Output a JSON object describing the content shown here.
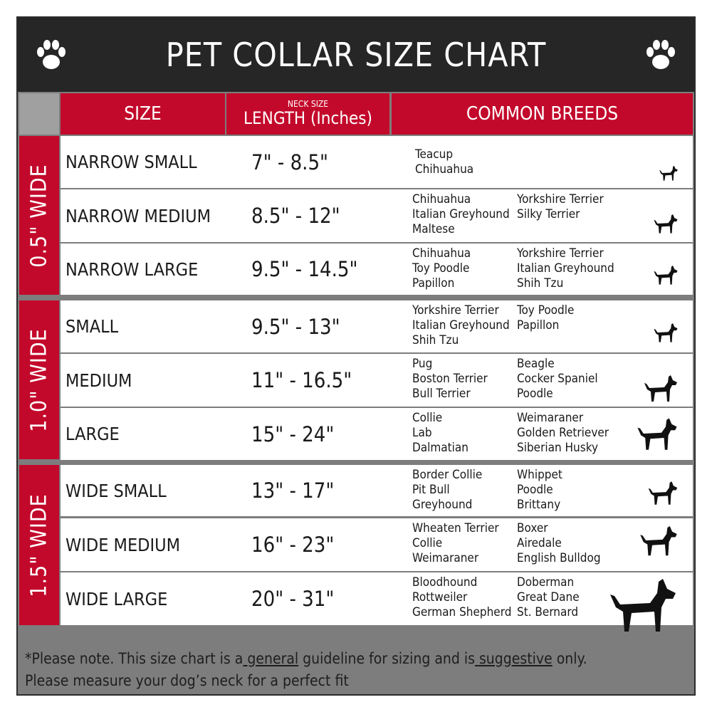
{
  "title": "PET COLLAR SIZE CHART",
  "header": {
    "size": "SIZE",
    "neck_small": "NECK SIZE",
    "length": "LENGTH (Inches)",
    "breeds": "COMMON BREEDS"
  },
  "groups": [
    {
      "label": "0.5\" WIDE"
    },
    {
      "label": "1.0\" WIDE"
    },
    {
      "label": "1.5\" WIDE"
    }
  ],
  "rows": [
    {
      "size": "NARROW SMALL",
      "length": "7\" - 8.5\"",
      "col1": [
        "Teacup",
        "Chihuahua"
      ],
      "col2": []
    },
    {
      "size": "NARROW MEDIUM",
      "length": "8.5\" - 12\"",
      "col1": [
        "Chihuahua",
        "Italian Greyhound",
        "Maltese"
      ],
      "col2": [
        "Yorkshire Terrier",
        "Silky Terrier"
      ]
    },
    {
      "size": "NARROW LARGE",
      "length": "9.5\" - 14.5\"",
      "col1": [
        "Chihuahua",
        "Toy Poodle",
        "Papillon"
      ],
      "col2": [
        "Yorkshire Terrier",
        "Italian Greyhound",
        "Shih Tzu"
      ]
    },
    {
      "size": "SMALL",
      "length": "9.5\" - 13\"",
      "col1": [
        "Yorkshire Terrier",
        "Italian Greyhound",
        "Shih Tzu"
      ],
      "col2": [
        "Toy Poodle",
        "Papillon"
      ]
    },
    {
      "size": "MEDIUM",
      "length": "11\" - 16.5\"",
      "col1": [
        "Pug",
        "Boston Terrier",
        "Bull Terrier"
      ],
      "col2": [
        "Beagle",
        "Cocker Spaniel",
        "Poodle"
      ]
    },
    {
      "size": "LARGE",
      "length": "15\" - 24\"",
      "col1": [
        "Collie",
        "Lab",
        "Dalmatian"
      ],
      "col2": [
        "Weimaraner",
        "Golden Retriever",
        "Siberian Husky"
      ]
    },
    {
      "size": "WIDE SMALL",
      "length": "13\" - 17\"",
      "col1": [
        "Border Collie",
        "Pit Bull",
        "Greyhound"
      ],
      "col2": [
        "Whippet",
        "Poodle",
        "Brittany"
      ]
    },
    {
      "size": "WIDE MEDIUM",
      "length": "16\" - 23\"",
      "col1": [
        "Wheaten Terrier",
        "Collie",
        "Weimaraner"
      ],
      "col2": [
        "Boxer",
        "Airedale",
        "English Bulldog"
      ]
    },
    {
      "size": "WIDE LARGE",
      "length": "20\" - 31\"",
      "col1": [
        "Bloodhound",
        "Rottweiler",
        "German Shepherd"
      ],
      "col2": [
        "Doberman",
        "Great Dane",
        "St. Bernard"
      ]
    }
  ],
  "footer": {
    "p1": "*Please note. This size chart is a",
    "u1": " general",
    "p2": " guideline for sizing and is",
    "u2": " suggestive",
    "p3": " only.",
    "line2": "Please measure your dog’s neck for a perfect fit"
  },
  "colors": {
    "red": "#c3092b",
    "dark": "#262626",
    "grey": "#7d7d7d"
  },
  "icons": [
    "paw-icon",
    "dog-silhouette-icon"
  ]
}
